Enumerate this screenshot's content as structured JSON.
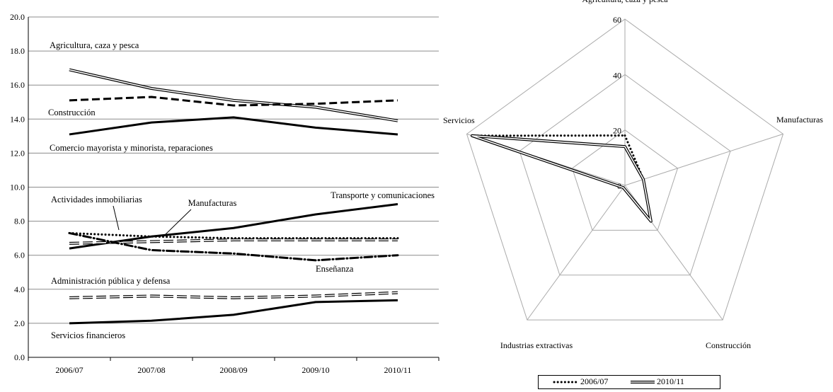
{
  "chart_data": [
    {
      "type": "line",
      "categories": [
        "2006/07",
        "2007/08",
        "2008/09",
        "2009/10",
        "2010/11"
      ],
      "ylim": [
        0,
        20
      ],
      "yticks": [
        "0.0",
        "2.0",
        "4.0",
        "6.0",
        "8.0",
        "10.0",
        "12.0",
        "14.0",
        "16.0",
        "18.0",
        "20.0"
      ],
      "grid": true,
      "series": [
        {
          "name": "Agricultura, caza y pesca",
          "style": "double",
          "values": [
            16.9,
            15.8,
            15.1,
            14.7,
            13.9
          ]
        },
        {
          "name": "Comercio mayorista y minorista, reparaciones",
          "style": "dashed-thick",
          "values": [
            15.1,
            15.3,
            14.8,
            14.9,
            15.1
          ]
        },
        {
          "name": "Construcción",
          "style": "solid-thick",
          "values": [
            13.1,
            13.8,
            14.1,
            13.5,
            13.1
          ]
        },
        {
          "name": "Transporte y comunicaciones",
          "style": "solid-thick",
          "values": [
            6.4,
            7.1,
            7.6,
            8.4,
            9.0
          ]
        },
        {
          "name": "Actividades inmobiliarias",
          "style": "dotted",
          "values": [
            7.3,
            7.1,
            7.0,
            7.0,
            7.0
          ]
        },
        {
          "name": "Manufacturas",
          "style": "double-dashed",
          "values": [
            6.7,
            6.8,
            6.9,
            6.9,
            6.9
          ]
        },
        {
          "name": "Enseñanza",
          "style": "dashdot",
          "values": [
            7.3,
            6.3,
            6.1,
            5.7,
            6.0
          ]
        },
        {
          "name": "Administración pública y defensa",
          "style": "double-dashed",
          "values": [
            3.5,
            3.6,
            3.5,
            3.6,
            3.8
          ]
        },
        {
          "name": "Servicios financieros",
          "style": "solid-thick",
          "values": [
            2.0,
            2.15,
            2.5,
            3.25,
            3.35
          ]
        }
      ]
    },
    {
      "type": "radar",
      "axes": [
        "Agricultura, caza y pesca",
        "Manufacturas",
        "Construcción",
        "Industrias extractivas",
        "Servicios"
      ],
      "rlim": [
        0,
        60
      ],
      "rticks": [
        "0",
        "20",
        "40",
        "60"
      ],
      "series": [
        {
          "name": "2006/07",
          "style": "dotted",
          "values": [
            18,
            7,
            16,
            1,
            58
          ]
        },
        {
          "name": "2010/11",
          "style": "double",
          "values": [
            14,
            7,
            16,
            1,
            58
          ]
        }
      ],
      "legend": "bottom"
    }
  ]
}
